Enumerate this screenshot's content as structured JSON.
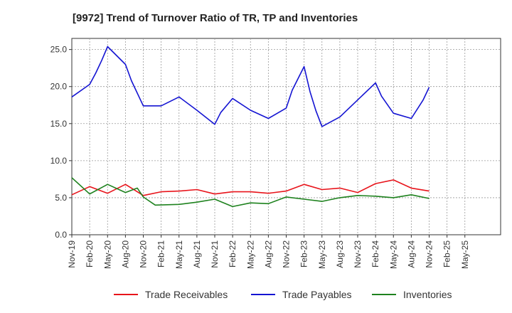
{
  "chart_data": {
    "type": "line",
    "title": "[9972]  Trend of Turnover Ratio of TR, TP and Inventories",
    "xlabel": "",
    "ylabel": "",
    "ylim": [
      0,
      26.5
    ],
    "yticks": [
      "0.0",
      "5.0",
      "10.0",
      "15.0",
      "20.0",
      "25.0"
    ],
    "ytick_values": [
      0,
      5,
      10,
      15,
      20,
      25
    ],
    "grid": true,
    "legend_position": "bottom",
    "x": [
      "Nov-19",
      "Dec-19",
      "Jan-20",
      "Feb-20",
      "Mar-20",
      "Apr-20",
      "May-20",
      "Jun-20",
      "Jul-20",
      "Aug-20",
      "Sep-20",
      "Oct-20",
      "Nov-20",
      "Dec-20",
      "Jan-21",
      "Feb-21",
      "Mar-21",
      "Apr-21",
      "May-21",
      "Jun-21",
      "Jul-21",
      "Aug-21",
      "Sep-21",
      "Oct-21",
      "Nov-21",
      "Dec-21",
      "Jan-22",
      "Feb-22",
      "Mar-22",
      "Apr-22",
      "May-22",
      "Jun-22",
      "Jul-22",
      "Aug-22",
      "Sep-22",
      "Oct-22",
      "Nov-22",
      "Dec-22",
      "Jan-23",
      "Feb-23",
      "Mar-23",
      "Apr-23",
      "May-23",
      "Jun-23",
      "Jul-23",
      "Aug-23",
      "Sep-23",
      "Oct-23",
      "Nov-23",
      "Dec-23",
      "Jan-24",
      "Feb-24",
      "Mar-24",
      "Apr-24",
      "May-24",
      "Jun-24",
      "Jul-24",
      "Aug-24",
      "Sep-24",
      "Oct-24",
      "Nov-24",
      "Dec-24",
      "Jan-25",
      "Feb-25",
      "Mar-25",
      "Apr-25",
      "May-25",
      "Jun-25",
      "Jul-25",
      "Aug-25",
      "Sep-25",
      "Oct-25",
      "Nov-25"
    ],
    "xtick_labels": [
      "Nov-19",
      "Feb-20",
      "May-20",
      "Aug-20",
      "Nov-20",
      "Feb-21",
      "May-21",
      "Aug-21",
      "Nov-21",
      "Feb-22",
      "May-22",
      "Aug-22",
      "Nov-22",
      "Feb-23",
      "May-23",
      "Aug-23",
      "Nov-23",
      "Feb-24",
      "May-24",
      "Aug-24",
      "Nov-24",
      "Feb-25",
      "May-25"
    ],
    "series": [
      {
        "name": "Trade Receivables",
        "color": "#e8141b",
        "points": [
          [
            "Nov-19",
            5.4
          ],
          [
            "Feb-20",
            6.5
          ],
          [
            "May-20",
            5.6
          ],
          [
            "Aug-20",
            6.8
          ],
          [
            "Nov-20",
            5.3
          ],
          [
            "Feb-21",
            5.8
          ],
          [
            "May-21",
            5.9
          ],
          [
            "Aug-21",
            6.1
          ],
          [
            "Nov-21",
            5.5
          ],
          [
            "Feb-22",
            5.8
          ],
          [
            "May-22",
            5.8
          ],
          [
            "Aug-22",
            5.6
          ],
          [
            "Nov-22",
            5.9
          ],
          [
            "Feb-23",
            6.8
          ],
          [
            "May-23",
            6.1
          ],
          [
            "Aug-23",
            6.3
          ],
          [
            "Nov-23",
            5.7
          ],
          [
            "Feb-24",
            6.9
          ],
          [
            "May-24",
            7.4
          ],
          [
            "Aug-24",
            6.3
          ],
          [
            "Nov-24",
            5.9
          ]
        ]
      },
      {
        "name": "Trade Payables",
        "color": "#1414d2",
        "points": [
          [
            "Nov-19",
            18.6
          ],
          [
            "Feb-20",
            20.3
          ],
          [
            "Mar-20",
            21.8
          ],
          [
            "Apr-20",
            23.5
          ],
          [
            "May-20",
            25.4
          ],
          [
            "Aug-20",
            23.0
          ],
          [
            "Sep-20",
            20.8
          ],
          [
            "Nov-20",
            17.4
          ],
          [
            "Feb-21",
            17.4
          ],
          [
            "May-21",
            18.6
          ],
          [
            "Aug-21",
            16.8
          ],
          [
            "Nov-21",
            14.9
          ],
          [
            "Dec-21",
            16.5
          ],
          [
            "Feb-22",
            18.4
          ],
          [
            "May-22",
            16.8
          ],
          [
            "Aug-22",
            15.7
          ],
          [
            "Nov-22",
            17.1
          ],
          [
            "Dec-22",
            19.5
          ],
          [
            "Feb-23",
            22.7
          ],
          [
            "Mar-23",
            19.3
          ],
          [
            "Apr-23",
            16.7
          ],
          [
            "May-23",
            14.6
          ],
          [
            "Aug-23",
            15.9
          ],
          [
            "Nov-23",
            18.2
          ],
          [
            "Feb-24",
            20.5
          ],
          [
            "Mar-24",
            18.7
          ],
          [
            "May-24",
            16.4
          ],
          [
            "Aug-24",
            15.7
          ],
          [
            "Oct-24",
            18.2
          ],
          [
            "Nov-24",
            19.9
          ]
        ]
      },
      {
        "name": "Inventories",
        "color": "#1e821e",
        "points": [
          [
            "Nov-19",
            7.7
          ],
          [
            "Feb-20",
            5.5
          ],
          [
            "May-20",
            6.8
          ],
          [
            "Aug-20",
            5.7
          ],
          [
            "Oct-20",
            6.3
          ],
          [
            "Nov-20",
            5.1
          ],
          [
            "Jan-21",
            4.0
          ],
          [
            "May-21",
            4.1
          ],
          [
            "Aug-21",
            4.4
          ],
          [
            "Nov-21",
            4.8
          ],
          [
            "Feb-22",
            3.8
          ],
          [
            "May-22",
            4.3
          ],
          [
            "Aug-22",
            4.2
          ],
          [
            "Nov-22",
            5.1
          ],
          [
            "Feb-23",
            4.8
          ],
          [
            "May-23",
            4.5
          ],
          [
            "Aug-23",
            5.0
          ],
          [
            "Nov-23",
            5.3
          ],
          [
            "Feb-24",
            5.2
          ],
          [
            "May-24",
            5.0
          ],
          [
            "Aug-24",
            5.4
          ],
          [
            "Nov-24",
            4.9
          ]
        ]
      }
    ]
  }
}
